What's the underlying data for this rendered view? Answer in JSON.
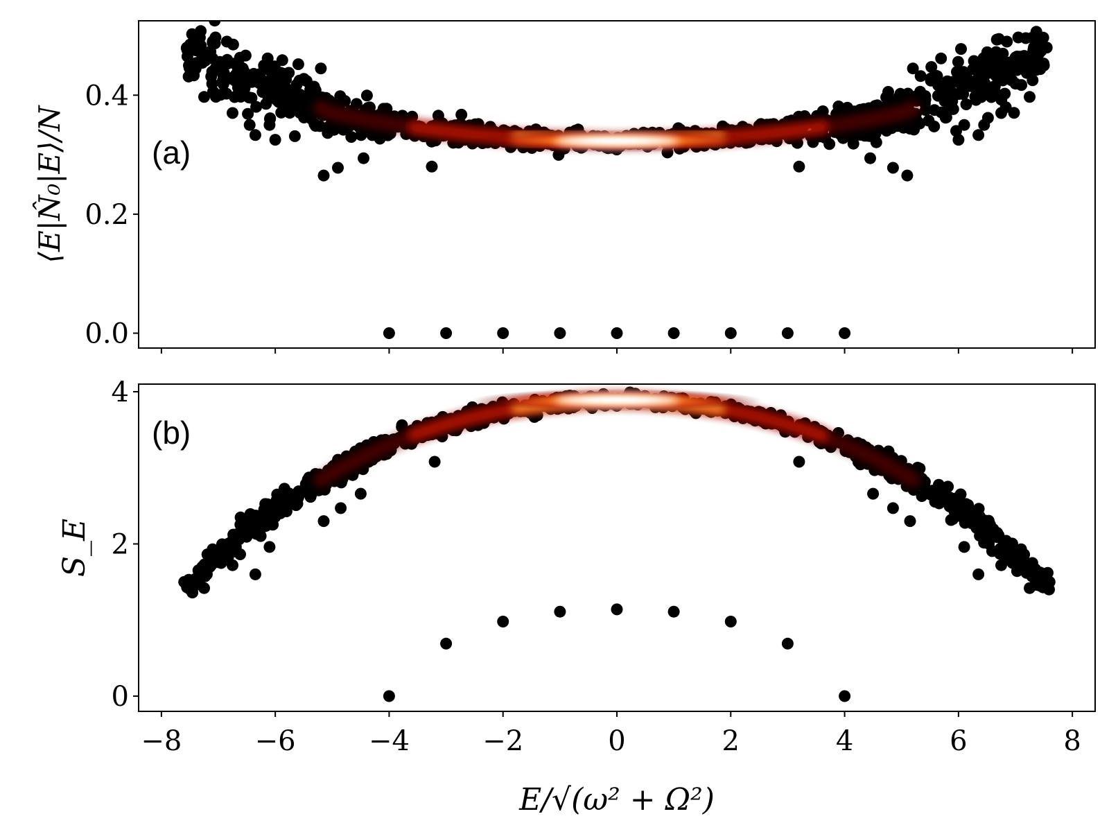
{
  "figure": {
    "colors": {
      "background": "#ffffff",
      "ink": "#000000",
      "glow_mid": "#b80f00",
      "glow_hot": "#ffffff"
    }
  },
  "chart_data": [
    {
      "panel": "a",
      "panel_label": "(a)",
      "type": "scatter",
      "title": "",
      "xlabel": "",
      "ylabel": "⟨E|N̂₀|E⟩/N",
      "xlim": [
        -8.4,
        8.4
      ],
      "ylim": [
        -0.025,
        0.525
      ],
      "xticks": [
        -8,
        -6,
        -4,
        -2,
        0,
        2,
        4,
        6,
        8
      ],
      "yticks": [
        0.0,
        0.2,
        0.4
      ],
      "ytick_labels": [
        "0.0",
        "0.2",
        "0.4"
      ],
      "x_ticklabels_shown": false,
      "band": {
        "description": "dense cloud of eigenstates, colour = point density (black to red to white at E≈0)",
        "center_curve": {
          "x": [
            -7.5,
            -7.0,
            -6.5,
            -6.0,
            -5.5,
            -5.0,
            -4.5,
            -4.0,
            -3.5,
            -3.0,
            -2.5,
            -2.0,
            -1.5,
            -1.0,
            -0.5,
            0.0,
            0.5,
            1.0,
            1.5,
            2.0,
            2.5,
            3.0,
            3.5,
            4.0,
            4.5,
            5.0,
            5.5,
            6.0,
            6.5,
            7.0,
            7.5
          ],
          "y": [
            0.47,
            0.45,
            0.43,
            0.41,
            0.39,
            0.37,
            0.36,
            0.352,
            0.345,
            0.339,
            0.334,
            0.33,
            0.327,
            0.325,
            0.324,
            0.323,
            0.324,
            0.325,
            0.327,
            0.33,
            0.334,
            0.339,
            0.345,
            0.352,
            0.36,
            0.37,
            0.39,
            0.41,
            0.43,
            0.45,
            0.47
          ]
        },
        "spread": {
          "x": [
            -7.5,
            -6.5,
            -5.5,
            -5.0,
            -4.0,
            -2.0,
            0.0,
            2.0,
            4.0,
            5.0,
            5.5,
            6.5,
            7.5
          ],
          "y": [
            0.035,
            0.035,
            0.03,
            0.022,
            0.016,
            0.011,
            0.009,
            0.011,
            0.016,
            0.022,
            0.03,
            0.035,
            0.035
          ]
        },
        "outliers": [
          {
            "x": -7.55,
            "y": 0.48
          },
          {
            "x": -7.5,
            "y": 0.45
          },
          {
            "x": -7.35,
            "y": 0.5
          },
          {
            "x": -7.25,
            "y": 0.397
          },
          {
            "x": -7.05,
            "y": 0.497
          },
          {
            "x": -6.95,
            "y": 0.453
          },
          {
            "x": -6.85,
            "y": 0.49
          },
          {
            "x": -6.75,
            "y": 0.37
          },
          {
            "x": -6.62,
            "y": 0.463
          },
          {
            "x": -6.55,
            "y": 0.44
          },
          {
            "x": -6.45,
            "y": 0.35
          },
          {
            "x": -6.35,
            "y": 0.333
          },
          {
            "x": -6.1,
            "y": 0.35
          },
          {
            "x": -6.0,
            "y": 0.325
          },
          {
            "x": -5.15,
            "y": 0.265
          },
          {
            "x": -4.9,
            "y": 0.278
          },
          {
            "x": -4.45,
            "y": 0.294
          },
          {
            "x": -3.25,
            "y": 0.28
          },
          {
            "x": -5.2,
            "y": 0.445
          },
          {
            "x": 7.55,
            "y": 0.48
          },
          {
            "x": 7.5,
            "y": 0.45
          },
          {
            "x": 7.35,
            "y": 0.5
          },
          {
            "x": 7.25,
            "y": 0.397
          },
          {
            "x": 7.05,
            "y": 0.497
          },
          {
            "x": 6.95,
            "y": 0.453
          },
          {
            "x": 6.85,
            "y": 0.49
          },
          {
            "x": 6.75,
            "y": 0.37
          },
          {
            "x": 6.62,
            "y": 0.463
          },
          {
            "x": 6.55,
            "y": 0.44
          },
          {
            "x": 6.45,
            "y": 0.35
          },
          {
            "x": 6.35,
            "y": 0.333
          },
          {
            "x": 6.1,
            "y": 0.35
          },
          {
            "x": 6.0,
            "y": 0.325
          },
          {
            "x": 5.1,
            "y": 0.265
          },
          {
            "x": 4.85,
            "y": 0.278
          },
          {
            "x": 4.45,
            "y": 0.294
          },
          {
            "x": 3.2,
            "y": 0.28
          },
          {
            "x": 5.2,
            "y": 0.445
          }
        ]
      },
      "isolated_points": [
        {
          "x": -4,
          "y": 0.0
        },
        {
          "x": -3,
          "y": 0.0
        },
        {
          "x": -2,
          "y": 0.0
        },
        {
          "x": -1,
          "y": 0.0
        },
        {
          "x": 0,
          "y": 0.0
        },
        {
          "x": 1,
          "y": 0.0
        },
        {
          "x": 2,
          "y": 0.0
        },
        {
          "x": 3,
          "y": 0.0
        },
        {
          "x": 4,
          "y": 0.0
        }
      ]
    },
    {
      "panel": "b",
      "panel_label": "(b)",
      "type": "scatter",
      "title": "",
      "xlabel": "E/√(ω² + Ω²)",
      "ylabel": "S_E",
      "xlim": [
        -8.4,
        8.4
      ],
      "ylim": [
        -0.2,
        4.1
      ],
      "xticks": [
        -8,
        -6,
        -4,
        -2,
        0,
        2,
        4,
        6,
        8
      ],
      "xtick_labels": [
        "−8",
        "−6",
        "−4",
        "−2",
        "0",
        "2",
        "4",
        "6",
        "8"
      ],
      "yticks": [
        0,
        2,
        4
      ],
      "ytick_labels": [
        "0",
        "2",
        "4"
      ],
      "band": {
        "description": "dense cloud of eigenstates, colour = point density (black to red to white at E≈0)",
        "center_curve": {
          "x": [
            -7.5,
            -7.0,
            -6.5,
            -6.0,
            -5.5,
            -5.0,
            -4.5,
            -4.0,
            -3.5,
            -3.0,
            -2.5,
            -2.0,
            -1.5,
            -1.0,
            -0.5,
            0.0,
            0.5,
            1.0,
            1.5,
            2.0,
            2.5,
            3.0,
            3.5,
            4.0,
            4.5,
            5.0,
            5.5,
            6.0,
            6.5,
            7.0,
            7.5
          ],
          "y": [
            1.47,
            1.85,
            2.18,
            2.46,
            2.71,
            2.93,
            3.13,
            3.3,
            3.45,
            3.57,
            3.67,
            3.75,
            3.81,
            3.85,
            3.88,
            3.89,
            3.88,
            3.85,
            3.81,
            3.75,
            3.67,
            3.57,
            3.45,
            3.3,
            3.13,
            2.93,
            2.71,
            2.46,
            2.18,
            1.85,
            1.47
          ]
        },
        "spread": {
          "x": [
            -7.5,
            -6.0,
            -5.0,
            -4.0,
            -2.0,
            0.0,
            2.0,
            4.0,
            5.0,
            6.0,
            7.5
          ],
          "y": [
            0.09,
            0.12,
            0.1,
            0.08,
            0.06,
            0.05,
            0.06,
            0.08,
            0.1,
            0.12,
            0.09
          ]
        },
        "outliers": [
          {
            "x": -7.6,
            "y": 1.5
          },
          {
            "x": -7.55,
            "y": 1.43
          },
          {
            "x": -7.4,
            "y": 1.46
          },
          {
            "x": -7.25,
            "y": 1.42
          },
          {
            "x": -7.1,
            "y": 1.93
          },
          {
            "x": -6.95,
            "y": 1.75
          },
          {
            "x": -6.75,
            "y": 1.72
          },
          {
            "x": -6.35,
            "y": 1.6
          },
          {
            "x": -6.1,
            "y": 1.96
          },
          {
            "x": -5.15,
            "y": 2.3
          },
          {
            "x": -4.85,
            "y": 2.47
          },
          {
            "x": -3.2,
            "y": 3.08
          },
          {
            "x": -3.6,
            "y": 3.36
          },
          {
            "x": -4.5,
            "y": 2.66
          },
          {
            "x": 7.6,
            "y": 1.5
          },
          {
            "x": 7.55,
            "y": 1.43
          },
          {
            "x": 7.4,
            "y": 1.46
          },
          {
            "x": 7.25,
            "y": 1.42
          },
          {
            "x": 7.1,
            "y": 1.93
          },
          {
            "x": 6.95,
            "y": 1.75
          },
          {
            "x": 6.75,
            "y": 1.72
          },
          {
            "x": 6.35,
            "y": 1.6
          },
          {
            "x": 6.1,
            "y": 1.96
          },
          {
            "x": 5.15,
            "y": 2.3
          },
          {
            "x": 4.85,
            "y": 2.47
          },
          {
            "x": 3.2,
            "y": 3.08
          },
          {
            "x": 3.6,
            "y": 3.36
          },
          {
            "x": 4.5,
            "y": 2.66
          }
        ]
      },
      "isolated_points": [
        {
          "x": -4,
          "y": 0.0
        },
        {
          "x": -3,
          "y": 0.69
        },
        {
          "x": -2,
          "y": 0.98
        },
        {
          "x": -1,
          "y": 1.11
        },
        {
          "x": 0,
          "y": 1.14
        },
        {
          "x": 1,
          "y": 1.11
        },
        {
          "x": 2,
          "y": 0.98
        },
        {
          "x": 3,
          "y": 0.69
        },
        {
          "x": 4,
          "y": 0.0
        }
      ]
    }
  ]
}
